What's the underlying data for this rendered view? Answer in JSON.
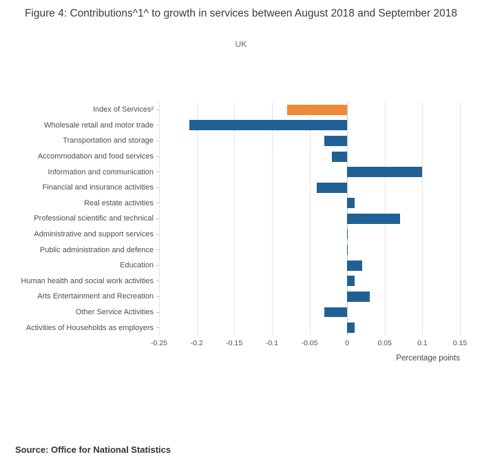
{
  "header": {
    "title": "Figure 4: Contributions^1^ to growth in services between August 2018 and September 2018",
    "subtitle": "UK"
  },
  "footer": {
    "source": "Source: Office for National Statistics"
  },
  "chart_data": {
    "type": "bar",
    "orientation": "horizontal",
    "title": "Figure 4: Contributions^1^ to growth in services between August 2018 and September 2018",
    "subtitle": "UK",
    "xlabel": "Percentage points",
    "ylabel": "",
    "xlim": [
      -0.25,
      0.15
    ],
    "xtick_labels": [
      "-0.25",
      "-0.2",
      "-0.15",
      "-0.1",
      "-0.05",
      "0",
      "0.05",
      "0.1",
      "0.15"
    ],
    "grid": true,
    "legend": "none",
    "categories": [
      "Index of Services²",
      "Wholesale retail and motor trade",
      "Transportation and storage",
      "Accommodation and food services",
      "Information and communication",
      "Financial and insurance activities",
      "Real estate activities",
      "Professional scientific and technical",
      "Administrative and support services",
      "Public administration and defence",
      "Education",
      "Human health and social work activities",
      "Arts Entertainment and Recreation",
      "Other Service Activities",
      "Activities of Households as employers"
    ],
    "values": [
      -0.08,
      -0.21,
      -0.03,
      -0.02,
      0.1,
      -0.04,
      0.01,
      0.07,
      0.0,
      0.0,
      0.02,
      0.01,
      0.03,
      -0.03,
      0.01
    ],
    "highlight_index": 0,
    "colors": {
      "highlight": "#f0883a",
      "default": "#206095",
      "gridline": "#e4e4e4",
      "zero_line": "#c9c9c9"
    }
  }
}
